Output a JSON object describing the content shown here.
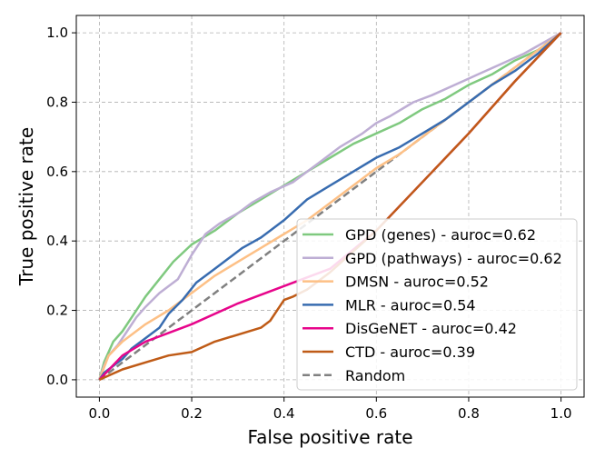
{
  "chart_data": {
    "type": "line",
    "title": "",
    "xlabel": "False positive rate",
    "ylabel": "True positive rate",
    "xlim": [
      -0.05,
      1.05
    ],
    "ylim": [
      -0.05,
      1.05
    ],
    "xticks": [
      "0.0",
      "0.2",
      "0.4",
      "0.6",
      "0.8",
      "1.0"
    ],
    "yticks": [
      "0.0",
      "0.2",
      "0.4",
      "0.6",
      "0.8",
      "1.0"
    ],
    "grid": true,
    "legend_position": "lower-right",
    "series": [
      {
        "name": "GPD (genes) - auroc=0.62",
        "color": "#7fc97f",
        "x": [
          0,
          0.01,
          0.02,
          0.03,
          0.05,
          0.07,
          0.1,
          0.13,
          0.16,
          0.2,
          0.25,
          0.3,
          0.35,
          0.4,
          0.45,
          0.5,
          0.55,
          0.6,
          0.65,
          0.7,
          0.75,
          0.8,
          0.85,
          0.9,
          0.95,
          1.0
        ],
        "y": [
          0,
          0.05,
          0.08,
          0.11,
          0.14,
          0.18,
          0.24,
          0.29,
          0.34,
          0.39,
          0.43,
          0.48,
          0.52,
          0.56,
          0.6,
          0.64,
          0.68,
          0.71,
          0.74,
          0.78,
          0.81,
          0.85,
          0.88,
          0.92,
          0.95,
          1.0
        ]
      },
      {
        "name": "GPD (pathways) - auroc=0.62",
        "color": "#beaed4",
        "x": [
          0,
          0.01,
          0.02,
          0.04,
          0.06,
          0.08,
          0.1,
          0.13,
          0.17,
          0.2,
          0.23,
          0.26,
          0.3,
          0.33,
          0.37,
          0.42,
          0.47,
          0.52,
          0.57,
          0.6,
          0.63,
          0.68,
          0.72,
          0.77,
          0.82,
          0.87,
          0.92,
          0.96,
          1.0
        ],
        "y": [
          0,
          0.04,
          0.07,
          0.1,
          0.14,
          0.18,
          0.21,
          0.25,
          0.29,
          0.36,
          0.42,
          0.45,
          0.48,
          0.51,
          0.54,
          0.57,
          0.62,
          0.67,
          0.71,
          0.74,
          0.76,
          0.8,
          0.82,
          0.85,
          0.88,
          0.91,
          0.94,
          0.97,
          1.0
        ]
      },
      {
        "name": "DMSN - auroc=0.52",
        "color": "#fdc086",
        "x": [
          0,
          0.02,
          0.05,
          0.1,
          0.15,
          0.2,
          0.25,
          0.3,
          0.35,
          0.4,
          0.45,
          0.5,
          0.55,
          0.6,
          0.65,
          0.7,
          0.75,
          0.8,
          0.85,
          0.9,
          0.95,
          1.0
        ],
        "y": [
          0,
          0.07,
          0.11,
          0.16,
          0.2,
          0.25,
          0.3,
          0.34,
          0.38,
          0.42,
          0.46,
          0.51,
          0.56,
          0.61,
          0.65,
          0.7,
          0.75,
          0.8,
          0.85,
          0.9,
          0.95,
          1.0
        ]
      },
      {
        "name": "MLR - auroc=0.54",
        "color": "#386cb0",
        "x": [
          0,
          0.01,
          0.03,
          0.05,
          0.07,
          0.1,
          0.13,
          0.15,
          0.18,
          0.21,
          0.25,
          0.28,
          0.31,
          0.35,
          0.4,
          0.45,
          0.5,
          0.55,
          0.6,
          0.65,
          0.7,
          0.75,
          0.8,
          0.85,
          0.9,
          0.95,
          1.0
        ],
        "y": [
          0,
          0.02,
          0.04,
          0.06,
          0.09,
          0.12,
          0.15,
          0.19,
          0.23,
          0.28,
          0.32,
          0.35,
          0.38,
          0.41,
          0.46,
          0.52,
          0.56,
          0.6,
          0.64,
          0.67,
          0.71,
          0.75,
          0.8,
          0.85,
          0.89,
          0.94,
          1.0
        ]
      },
      {
        "name": "DisGeNET - auroc=0.42",
        "color": "#e7058b",
        "x": [
          0,
          0.05,
          0.1,
          0.2,
          0.3,
          0.4,
          0.5,
          0.6,
          0.7,
          0.8,
          0.9,
          1.0
        ],
        "y": [
          0,
          0.07,
          0.11,
          0.16,
          0.22,
          0.27,
          0.32,
          0.43,
          0.57,
          0.71,
          0.86,
          1.0
        ]
      },
      {
        "name": "CTD - auroc=0.39",
        "color": "#bf5b17",
        "x": [
          0,
          0.05,
          0.1,
          0.15,
          0.2,
          0.25,
          0.3,
          0.35,
          0.37,
          0.4,
          0.42,
          0.45,
          0.5,
          0.6,
          0.7,
          0.8,
          0.9,
          1.0
        ],
        "y": [
          0,
          0.03,
          0.05,
          0.07,
          0.08,
          0.11,
          0.13,
          0.15,
          0.17,
          0.23,
          0.24,
          0.26,
          0.31,
          0.43,
          0.57,
          0.71,
          0.86,
          1.0
        ]
      }
    ],
    "random": {
      "name": "Random",
      "color": "#808080",
      "x": [
        0,
        1
      ],
      "y": [
        0,
        1
      ]
    }
  }
}
